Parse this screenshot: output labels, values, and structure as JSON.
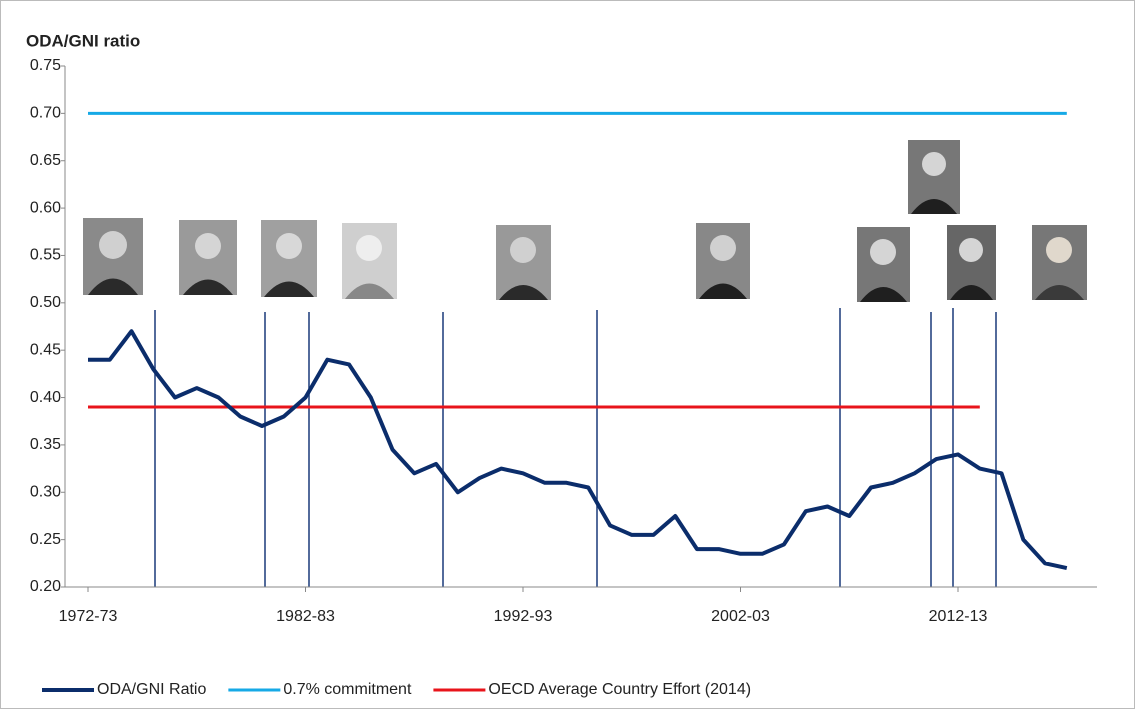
{
  "chart_data": {
    "type": "line",
    "ylabel": "ODA/GNI ratio",
    "categories": [
      "1972-73",
      null,
      null,
      null,
      null,
      null,
      null,
      null,
      null,
      null,
      "1982-83",
      null,
      null,
      null,
      null,
      null,
      null,
      null,
      null,
      null,
      "1992-93",
      null,
      null,
      null,
      null,
      null,
      null,
      null,
      null,
      null,
      "2002-03",
      null,
      null,
      null,
      null,
      null,
      null,
      null,
      null,
      null,
      "2012-13",
      null,
      null,
      null,
      null,
      null
    ],
    "series": [
      {
        "name": "ODA/GNI Ratio",
        "color": "#0b2d6b",
        "width": 4,
        "values": [
          0.44,
          0.44,
          0.47,
          0.43,
          0.4,
          0.41,
          0.4,
          0.38,
          0.37,
          0.38,
          0.4,
          0.44,
          0.435,
          0.4,
          0.345,
          0.32,
          0.33,
          0.3,
          0.315,
          0.325,
          0.32,
          0.31,
          0.31,
          0.305,
          0.265,
          0.255,
          0.255,
          0.275,
          0.24,
          0.24,
          0.235,
          0.235,
          0.245,
          0.28,
          0.285,
          0.275,
          0.305,
          0.31,
          0.32,
          0.335,
          0.34,
          0.325,
          0.32,
          0.25,
          0.225,
          0.22
        ]
      },
      {
        "name": "0.7% commitment",
        "color": "#16a9e6",
        "width": 3,
        "values": [
          0.7,
          0.7,
          0.7,
          0.7,
          0.7,
          0.7,
          0.7,
          0.7,
          0.7,
          0.7,
          0.7,
          0.7,
          0.7,
          0.7,
          0.7,
          0.7,
          0.7,
          0.7,
          0.7,
          0.7,
          0.7,
          0.7,
          0.7,
          0.7,
          0.7,
          0.7,
          0.7,
          0.7,
          0.7,
          0.7,
          0.7,
          0.7,
          0.7,
          0.7,
          0.7,
          0.7,
          0.7,
          0.7,
          0.7,
          0.7,
          0.7,
          0.7,
          0.7,
          0.7,
          0.7,
          0.7
        ]
      },
      {
        "name": "OECD Average Country Effort (2014)",
        "color": "#e8141b",
        "width": 3,
        "values": [
          0.39,
          0.39,
          0.39,
          0.39,
          0.39,
          0.39,
          0.39,
          0.39,
          0.39,
          0.39,
          0.39,
          0.39,
          0.39,
          0.39,
          0.39,
          0.39,
          0.39,
          0.39,
          0.39,
          0.39,
          0.39,
          0.39,
          0.39,
          0.39,
          0.39,
          0.39,
          0.39,
          0.39,
          0.39,
          0.39,
          0.39,
          0.39,
          0.39,
          0.39,
          0.39,
          0.39,
          0.39,
          0.39,
          0.39,
          0.39,
          0.39,
          0.39,
          null,
          null,
          null,
          null
        ]
      }
    ],
    "ylim": [
      0.2,
      0.75
    ],
    "yticks": [
      {
        "value": 0.2,
        "label": "0.20"
      },
      0.25,
      {
        "value": 0.3,
        "label": "0.30"
      },
      0.35,
      {
        "value": 0.4,
        "label": "0.40"
      },
      0.45,
      {
        "value": 0.5,
        "label": "0.50"
      },
      0.55,
      {
        "value": 0.6,
        "label": "0.60"
      },
      0.65,
      {
        "value": 0.7,
        "label": "0.70"
      },
      0.75
    ],
    "grid": false
  }
}
